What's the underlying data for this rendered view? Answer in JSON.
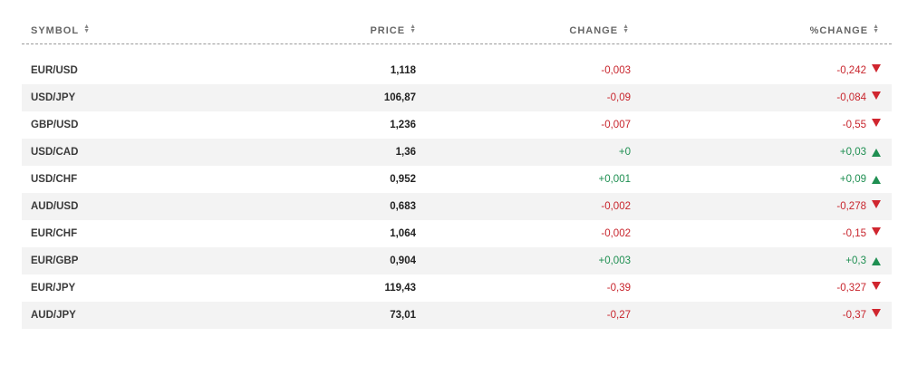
{
  "header": {
    "symbol": "SYMBOL",
    "price": "PRICE",
    "change": "CHANGE",
    "pchange": "%CHANGE"
  },
  "colors": {
    "negative": "#c8252d",
    "positive": "#1f8f52",
    "row_alt": "#f3f3f3"
  },
  "rows": [
    {
      "symbol": "EUR/USD",
      "price": "1,118",
      "change": "-0,003",
      "pchange": "-0,242",
      "direction": "down"
    },
    {
      "symbol": "USD/JPY",
      "price": "106,87",
      "change": "-0,09",
      "pchange": "-0,084",
      "direction": "down"
    },
    {
      "symbol": "GBP/USD",
      "price": "1,236",
      "change": "-0,007",
      "pchange": "-0,55",
      "direction": "down"
    },
    {
      "symbol": "USD/CAD",
      "price": "1,36",
      "change": "+0",
      "pchange": "+0,03",
      "direction": "up"
    },
    {
      "symbol": "USD/CHF",
      "price": "0,952",
      "change": "+0,001",
      "pchange": "+0,09",
      "direction": "up"
    },
    {
      "symbol": "AUD/USD",
      "price": "0,683",
      "change": "-0,002",
      "pchange": "-0,278",
      "direction": "down"
    },
    {
      "symbol": "EUR/CHF",
      "price": "1,064",
      "change": "-0,002",
      "pchange": "-0,15",
      "direction": "down"
    },
    {
      "symbol": "EUR/GBP",
      "price": "0,904",
      "change": "+0,003",
      "pchange": "+0,3",
      "direction": "up"
    },
    {
      "symbol": "EUR/JPY",
      "price": "119,43",
      "change": "-0,39",
      "pchange": "-0,327",
      "direction": "down"
    },
    {
      "symbol": "AUD/JPY",
      "price": "73,01",
      "change": "-0,27",
      "pchange": "-0,37",
      "direction": "down"
    }
  ]
}
